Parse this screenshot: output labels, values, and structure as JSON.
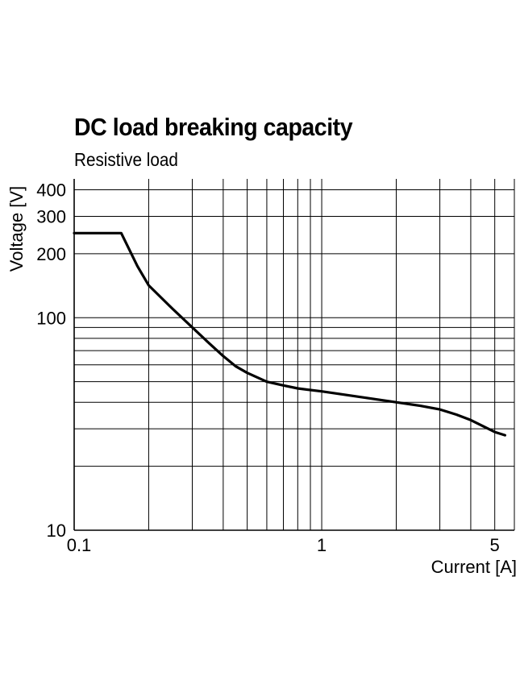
{
  "chart_data": {
    "type": "line",
    "title": "DC load breaking capacity",
    "subtitle": "Resistive load",
    "xlabel": "Current [A]",
    "ylabel": "Voltage [V]",
    "xscale": "log",
    "yscale": "log",
    "xlim": [
      0.1,
      6.0
    ],
    "ylim": [
      10,
      450
    ],
    "x_ticks": [
      0.1,
      1,
      5
    ],
    "x_tick_labels": [
      "0.1",
      "1",
      "5"
    ],
    "y_ticks": [
      10,
      100,
      200,
      300,
      400
    ],
    "y_tick_labels": [
      "10",
      "100",
      "200",
      "300",
      "400"
    ],
    "grid": true,
    "x_grid": [
      0.2,
      0.3,
      0.4,
      0.5,
      0.6,
      0.7,
      0.8,
      0.9,
      1,
      2,
      3,
      4,
      5,
      6
    ],
    "y_grid": [
      20,
      30,
      40,
      50,
      60,
      70,
      80,
      90,
      100,
      200,
      300,
      400
    ],
    "series": [
      {
        "name": "",
        "x": [
          0.1,
          0.155,
          0.18,
          0.2,
          0.25,
          0.3,
          0.35,
          0.4,
          0.45,
          0.5,
          0.6,
          0.7,
          0.8,
          1,
          1.5,
          2,
          2.5,
          3,
          3.5,
          4,
          5,
          5.5
        ],
        "y": [
          250,
          250,
          175,
          142,
          110,
          90,
          76,
          66,
          59,
          55,
          50,
          48,
          46.5,
          45,
          42,
          40,
          38.5,
          37,
          35,
          33,
          29,
          28
        ]
      }
    ]
  }
}
